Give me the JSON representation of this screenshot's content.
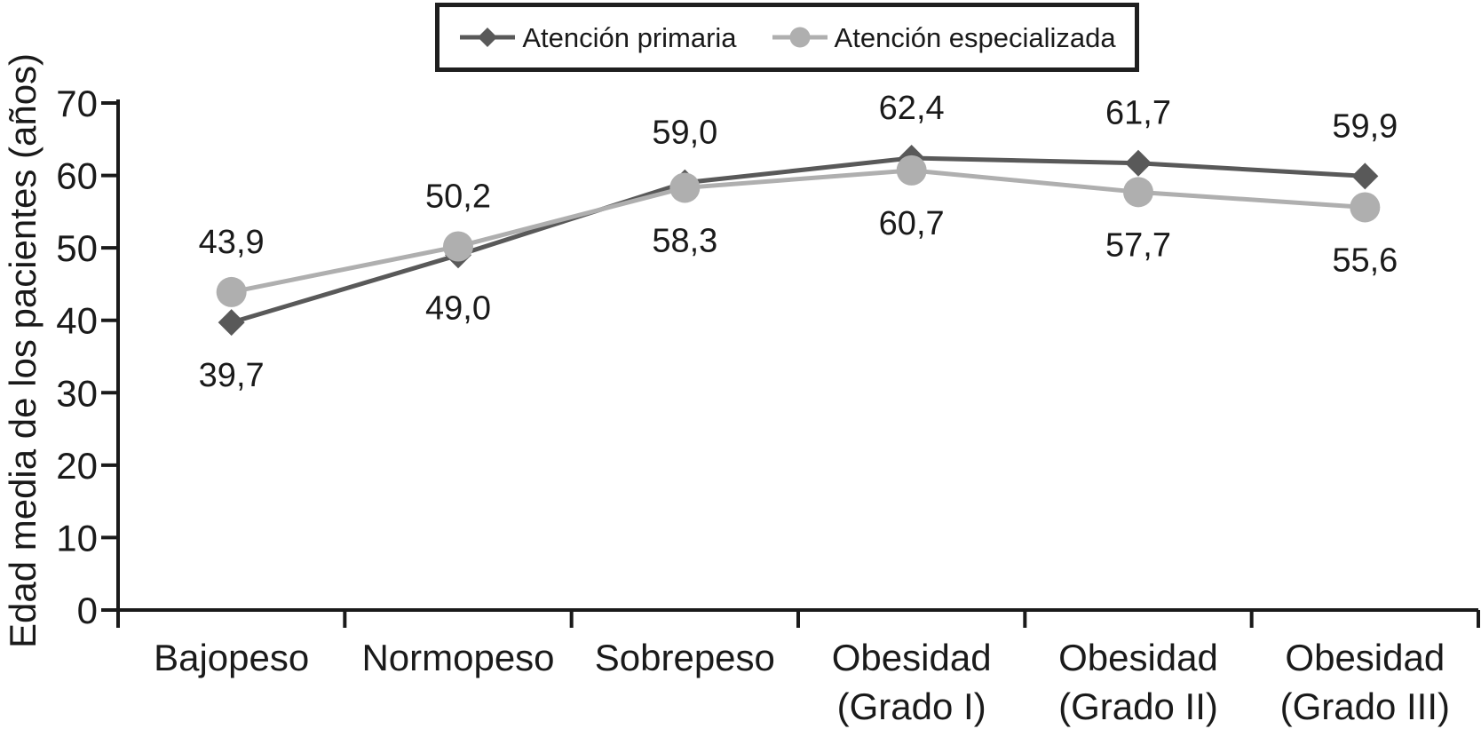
{
  "chart_data": {
    "type": "line",
    "title": "",
    "xlabel": "",
    "ylabel": "Edad media de los pacientes (años)",
    "ylim": [
      0,
      70
    ],
    "yticks": [
      0,
      10,
      20,
      30,
      40,
      50,
      60,
      70
    ],
    "grid": false,
    "legend_position": "top-center-boxed",
    "decimal_separator": ",",
    "axis_color": "#1a1a1a",
    "categories": [
      "Bajopeso",
      "Normopeso",
      "Sobrepeso",
      "Obesidad (Grado I)",
      "Obesidad (Grado II)",
      "Obesidad (Grado III)"
    ],
    "series": [
      {
        "name": "Atención primaria",
        "marker": "diamond",
        "color": "#595959",
        "values": [
          39.7,
          49.0,
          59.0,
          62.4,
          61.7,
          59.9
        ],
        "data_labels": [
          "39,7",
          "49,0",
          "59,0",
          "62,4",
          "61,7",
          "59,9"
        ],
        "label_position": [
          "below",
          "below",
          "above",
          "above",
          "above",
          "above"
        ]
      },
      {
        "name": "Atención especializada",
        "marker": "circle",
        "color": "#afafaf",
        "values": [
          43.9,
          50.2,
          58.3,
          60.7,
          57.7,
          55.6
        ],
        "data_labels": [
          "43,9",
          "50,2",
          "58,3",
          "60,7",
          "57,7",
          "55,6"
        ],
        "label_position": [
          "above",
          "above",
          "below",
          "below",
          "below",
          "below"
        ]
      }
    ]
  }
}
